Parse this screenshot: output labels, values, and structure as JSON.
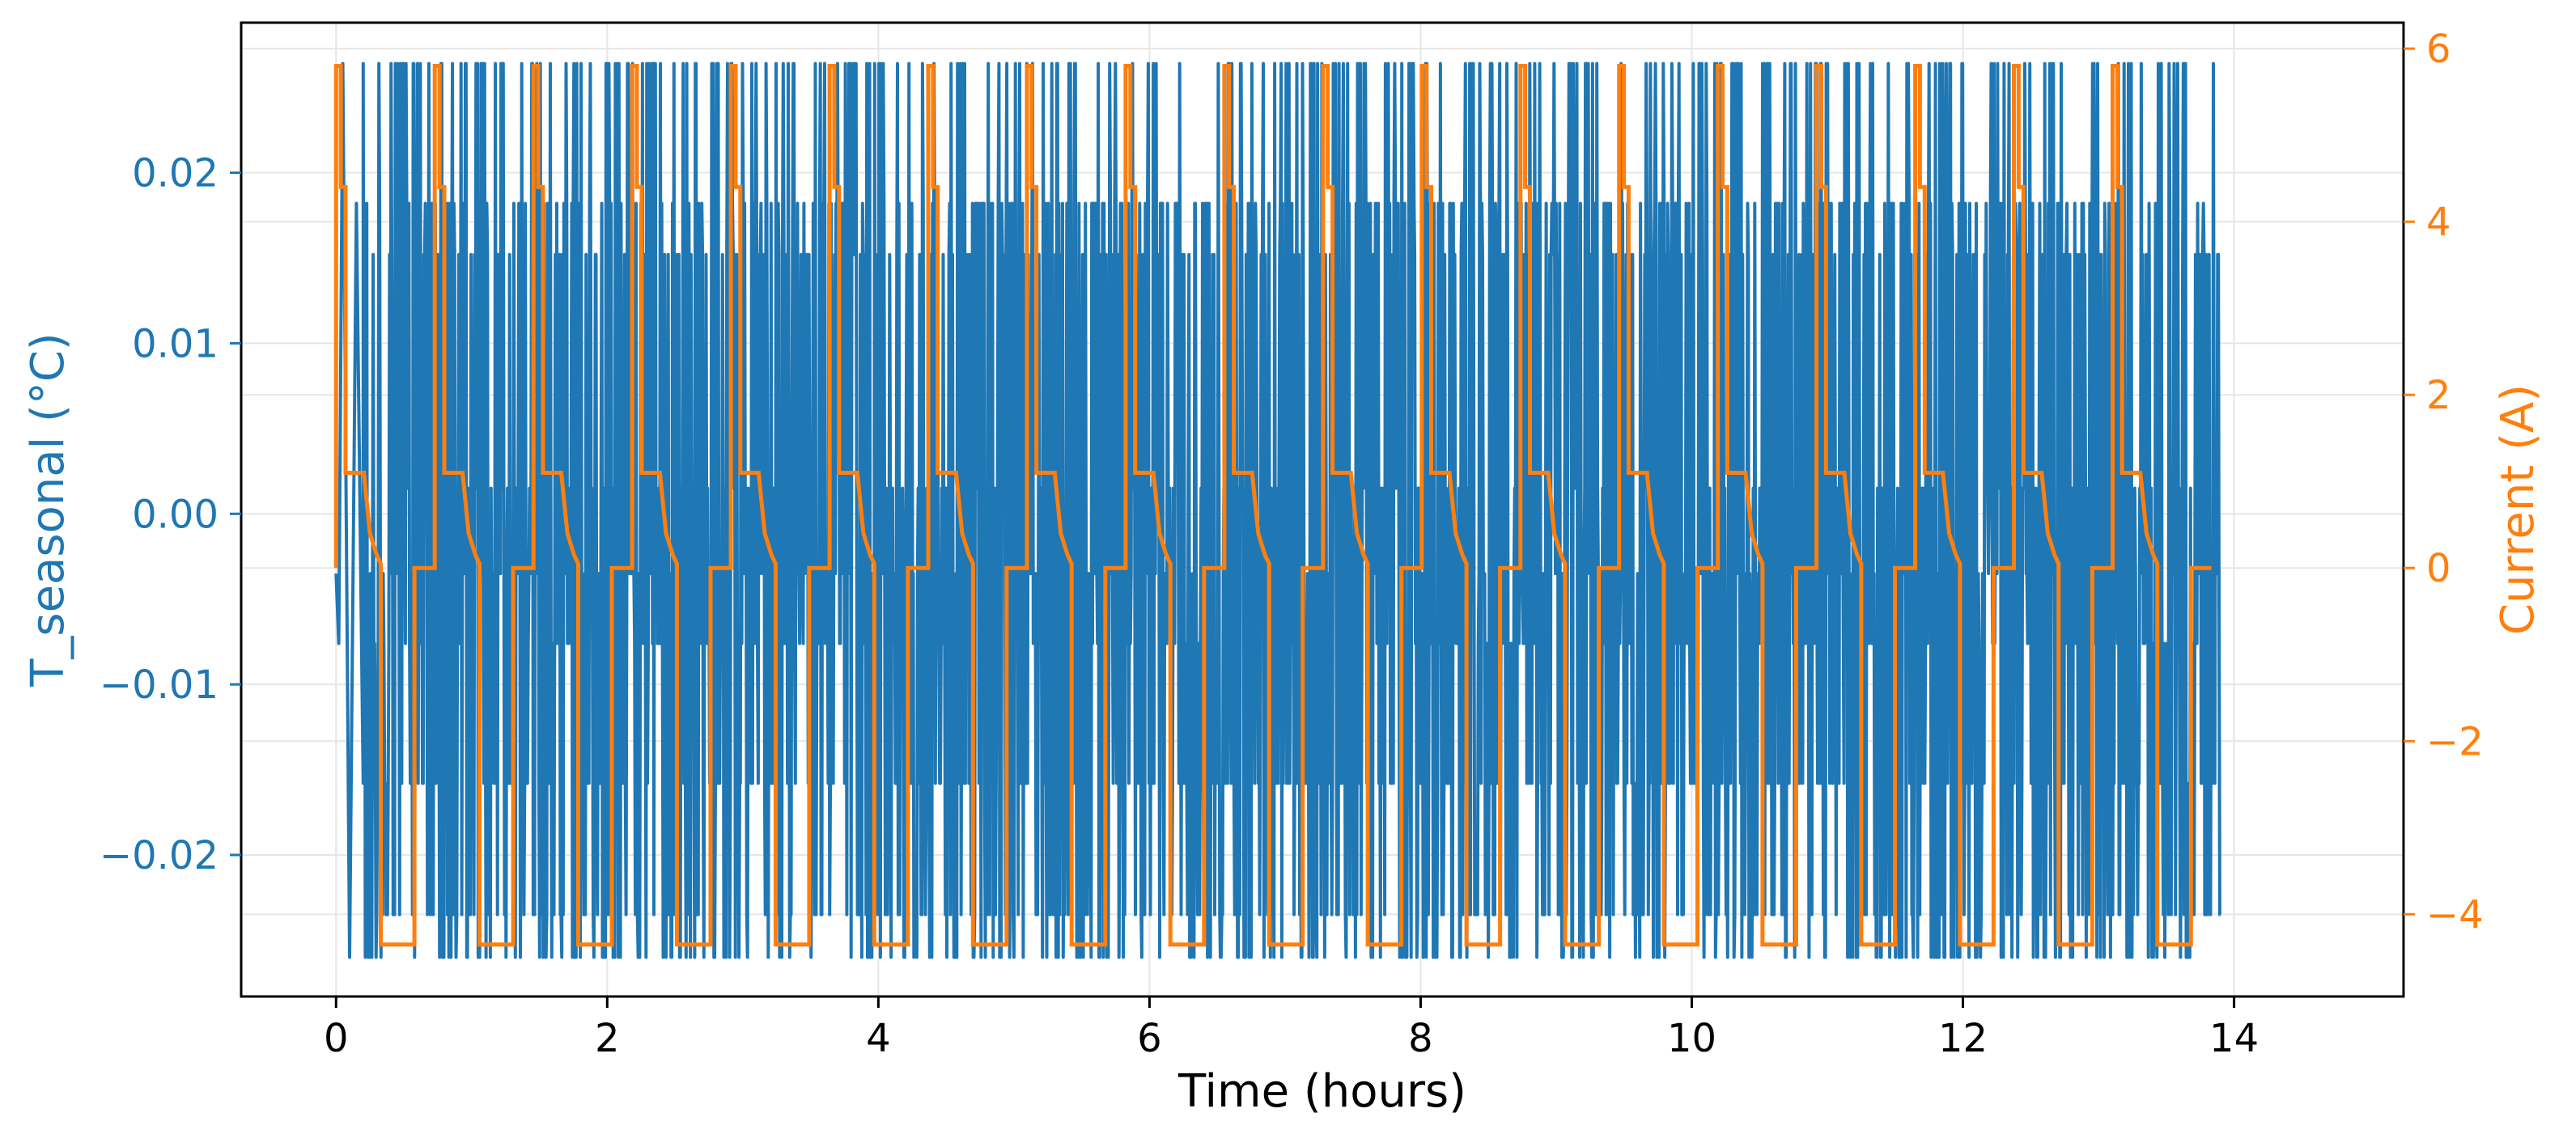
{
  "chart_data": {
    "type": "line",
    "title": "",
    "xlabel": "Time (hours)",
    "ylabel_left": "T_seasonal (°C)",
    "ylabel_right": "Current (A)",
    "xlim": [
      -0.7,
      15.25
    ],
    "ylim_left": [
      -0.0283,
      0.0288
    ],
    "ylim_right": [
      -4.95,
      6.3
    ],
    "x_ticks": [
      0,
      2,
      4,
      6,
      8,
      10,
      12,
      14
    ],
    "y_left_ticks": [
      -0.02,
      -0.01,
      0.0,
      0.01,
      0.02
    ],
    "y_right_ticks": [
      -4,
      -2,
      0,
      2,
      4,
      6
    ],
    "x_tick_labels": [
      "0",
      "2",
      "4",
      "6",
      "8",
      "10",
      "12",
      "14"
    ],
    "y_left_tick_labels": [
      "−0.02",
      "−0.01",
      "0.00",
      "0.01",
      "0.02"
    ],
    "y_right_tick_labels": [
      "−4",
      "−2",
      "0",
      "2",
      "4",
      "6"
    ],
    "grid": true,
    "legend": "none",
    "x_range": [
      0,
      13.9
    ],
    "series": [
      {
        "axis": "left",
        "color": "#1f77b4",
        "approx_range": [
          -0.026,
          0.0264
        ],
        "dense_levels": [
          -0.0076,
          -0.0035,
          0.0015,
          0.0152,
          0.0182,
          0.0264,
          -0.0158,
          -0.0235,
          -0.026
        ],
        "note_points": [
          {
            "x": 0.0,
            "y": -0.0035
          },
          {
            "x": 0.02,
            "y": -0.0076
          },
          {
            "x": 0.05,
            "y": 0.0264
          },
          {
            "x": 0.1,
            "y": -0.026
          },
          {
            "x": 0.15,
            "y": 0.0182
          },
          {
            "x": 0.2,
            "y": -0.0158
          }
        ]
      },
      {
        "axis": "right",
        "color": "#ff7f0e",
        "cycle_period_hours": 0.728,
        "cycles": 19,
        "cycle_profile": [
          {
            "t": 0.0,
            "y": 0.0
          },
          {
            "t": 0.0,
            "y": 5.8
          },
          {
            "t": 0.035,
            "y": 5.8
          },
          {
            "t": 0.035,
            "y": 4.4
          },
          {
            "t": 0.07,
            "y": 4.4
          },
          {
            "t": 0.07,
            "y": 1.1
          },
          {
            "t": 0.205,
            "y": 1.1
          },
          {
            "t": 0.25,
            "y": 0.4
          },
          {
            "t": 0.3,
            "y": 0.15
          },
          {
            "t": 0.33,
            "y": 0.05
          },
          {
            "t": 0.33,
            "y": -4.35
          },
          {
            "t": 0.578,
            "y": -4.35
          },
          {
            "t": 0.578,
            "y": 0.0
          },
          {
            "t": 0.728,
            "y": 0.0
          }
        ]
      }
    ]
  }
}
